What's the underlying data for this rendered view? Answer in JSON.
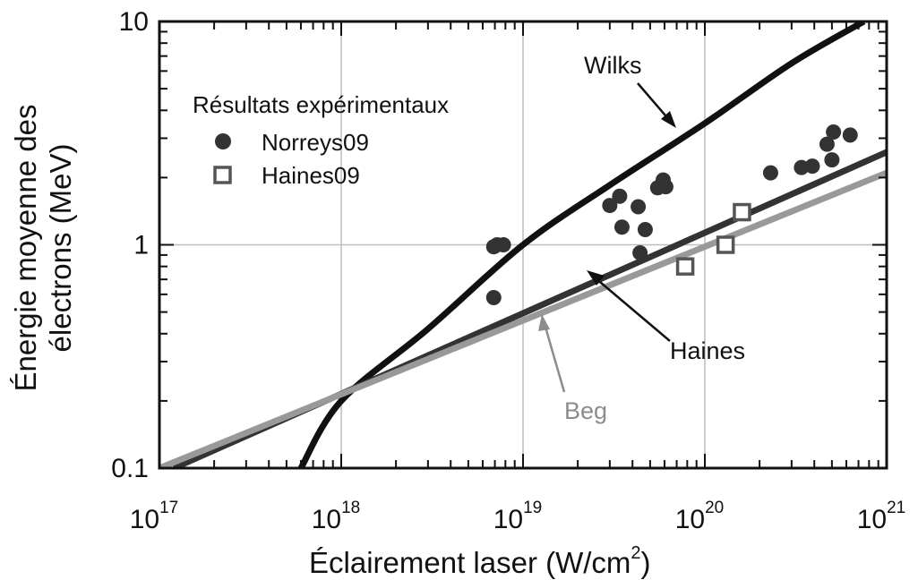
{
  "chart_data": {
    "type": "line",
    "xlabel": "Éclairement laser (W/cm",
    "xlabel_sup": "2",
    "xlabel_end": ")",
    "ylabel_line1": "Énergie moyenne des",
    "ylabel_line2": "électrons (MeV)",
    "x_scale": "log",
    "y_scale": "log",
    "xlim": [
      1e+17,
      1e+21
    ],
    "ylim": [
      0.1,
      10
    ],
    "x_ticks": [
      {
        "value": 1e+17,
        "base": "10",
        "exp": "17"
      },
      {
        "value": 1e+18,
        "base": "10",
        "exp": "18"
      },
      {
        "value": 1e+19,
        "base": "10",
        "exp": "19"
      },
      {
        "value": 1e+20,
        "base": "10",
        "exp": "20"
      },
      {
        "value": 1e+21,
        "base": "10",
        "exp": "21"
      }
    ],
    "y_ticks": [
      {
        "value": 0.1,
        "label": "0.1"
      },
      {
        "value": 1,
        "label": "1"
      },
      {
        "value": 10,
        "label": "10"
      }
    ],
    "grid": true,
    "legend_title": "Résultats expérimentaux",
    "legend_position": "top-left",
    "curves": [
      {
        "name": "Wilks",
        "color": "#111111",
        "x": [
          6e+17,
          1e+18,
          3e+18,
          1e+19,
          3e+19,
          1e+20,
          3e+20,
          7.5e+20
        ],
        "y": [
          0.1,
          0.2,
          0.42,
          1.0,
          1.85,
          3.5,
          6.5,
          10
        ]
      },
      {
        "name": "Haines",
        "color": "#333333",
        "x": [
          1.2e+17,
          1e+21
        ],
        "y": [
          0.1,
          2.6
        ]
      },
      {
        "name": "Beg",
        "color": "#999999",
        "x": [
          1e+17,
          1e+21
        ],
        "y": [
          0.1,
          2.1
        ]
      }
    ],
    "annotations": [
      {
        "text": "Wilks",
        "color": "#111111"
      },
      {
        "text": "Haines",
        "color": "#111111"
      },
      {
        "text": "Beg",
        "color": "#8c8c8c"
      }
    ],
    "series": [
      {
        "name": "Norreys09",
        "marker": "filled-circle",
        "color": "#333333",
        "x": [
          6.9e+18,
          7.2e+18,
          7.8e+18,
          6.9e+18,
          3e+19,
          3.4e+19,
          3.5e+19,
          4.3e+19,
          4.4e+19,
          4.7e+19,
          5.5e+19,
          5.9e+19,
          6.1e+19,
          2.3e+20,
          3.4e+20,
          3.9e+20,
          4.7e+20,
          5e+20,
          5.1e+20,
          6.3e+20
        ],
        "y": [
          0.98,
          1.0,
          1.0,
          0.58,
          1.5,
          1.65,
          1.2,
          1.48,
          0.92,
          1.17,
          1.8,
          1.95,
          1.82,
          2.1,
          2.22,
          2.25,
          2.82,
          2.4,
          3.2,
          3.1
        ]
      },
      {
        "name": "Haines09",
        "marker": "open-square",
        "color": "#555555",
        "x": [
          7.8e+19,
          1.3e+20,
          1.6e+20
        ],
        "y": [
          0.8,
          1.0,
          1.4
        ]
      }
    ]
  }
}
